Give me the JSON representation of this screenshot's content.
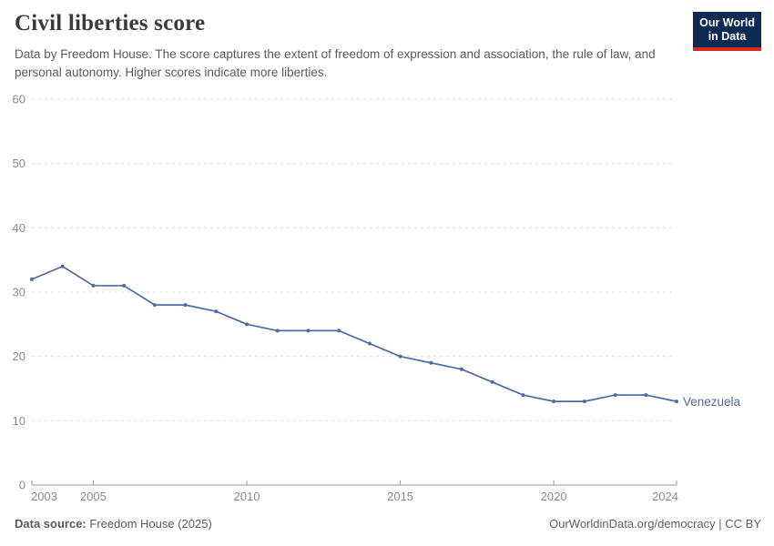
{
  "header": {
    "title": "Civil liberties score",
    "subtitle": "Data by Freedom House. The score captures the extent of freedom of expression and association, the rule of law, and personal autonomy. Higher scores indicate more liberties."
  },
  "logo": {
    "line1": "Our World",
    "line2": "in Data",
    "bg_color": "#0d2b52",
    "accent_color": "#d42b21"
  },
  "chart_data": {
    "type": "line",
    "title": "Civil liberties score",
    "x": [
      2003,
      2004,
      2005,
      2006,
      2007,
      2008,
      2009,
      2010,
      2011,
      2012,
      2013,
      2014,
      2015,
      2016,
      2017,
      2018,
      2019,
      2020,
      2021,
      2022,
      2023,
      2024
    ],
    "series": [
      {
        "name": "Venezuela",
        "color": "#4d6aa5",
        "values": [
          32,
          34,
          31,
          31,
          28,
          28,
          27,
          25,
          24,
          24,
          24,
          22,
          20,
          19,
          18,
          16,
          14,
          13,
          13,
          14,
          14,
          13
        ]
      }
    ],
    "xticks": [
      2003,
      2005,
      2010,
      2015,
      2020,
      2024
    ],
    "yticks": [
      0,
      10,
      20,
      30,
      40,
      50,
      60
    ],
    "xlim": [
      2003,
      2024
    ],
    "ylim": [
      0,
      60
    ],
    "grid": "horizontal-dashed",
    "legend_position": "end-of-line",
    "end_label": "Venezuela"
  },
  "footer": {
    "source_label": "Data source:",
    "source_value": "Freedom House (2025)",
    "credit": "OurWorldinData.org/democracy | CC BY"
  },
  "colors": {
    "line": "#4d6aa5",
    "grid": "#dcdcdc",
    "axis": "#9a9a9a",
    "tick_label": "#8c8c8c",
    "title": "#3a3a3a",
    "subtitle": "#5b5b5b"
  }
}
